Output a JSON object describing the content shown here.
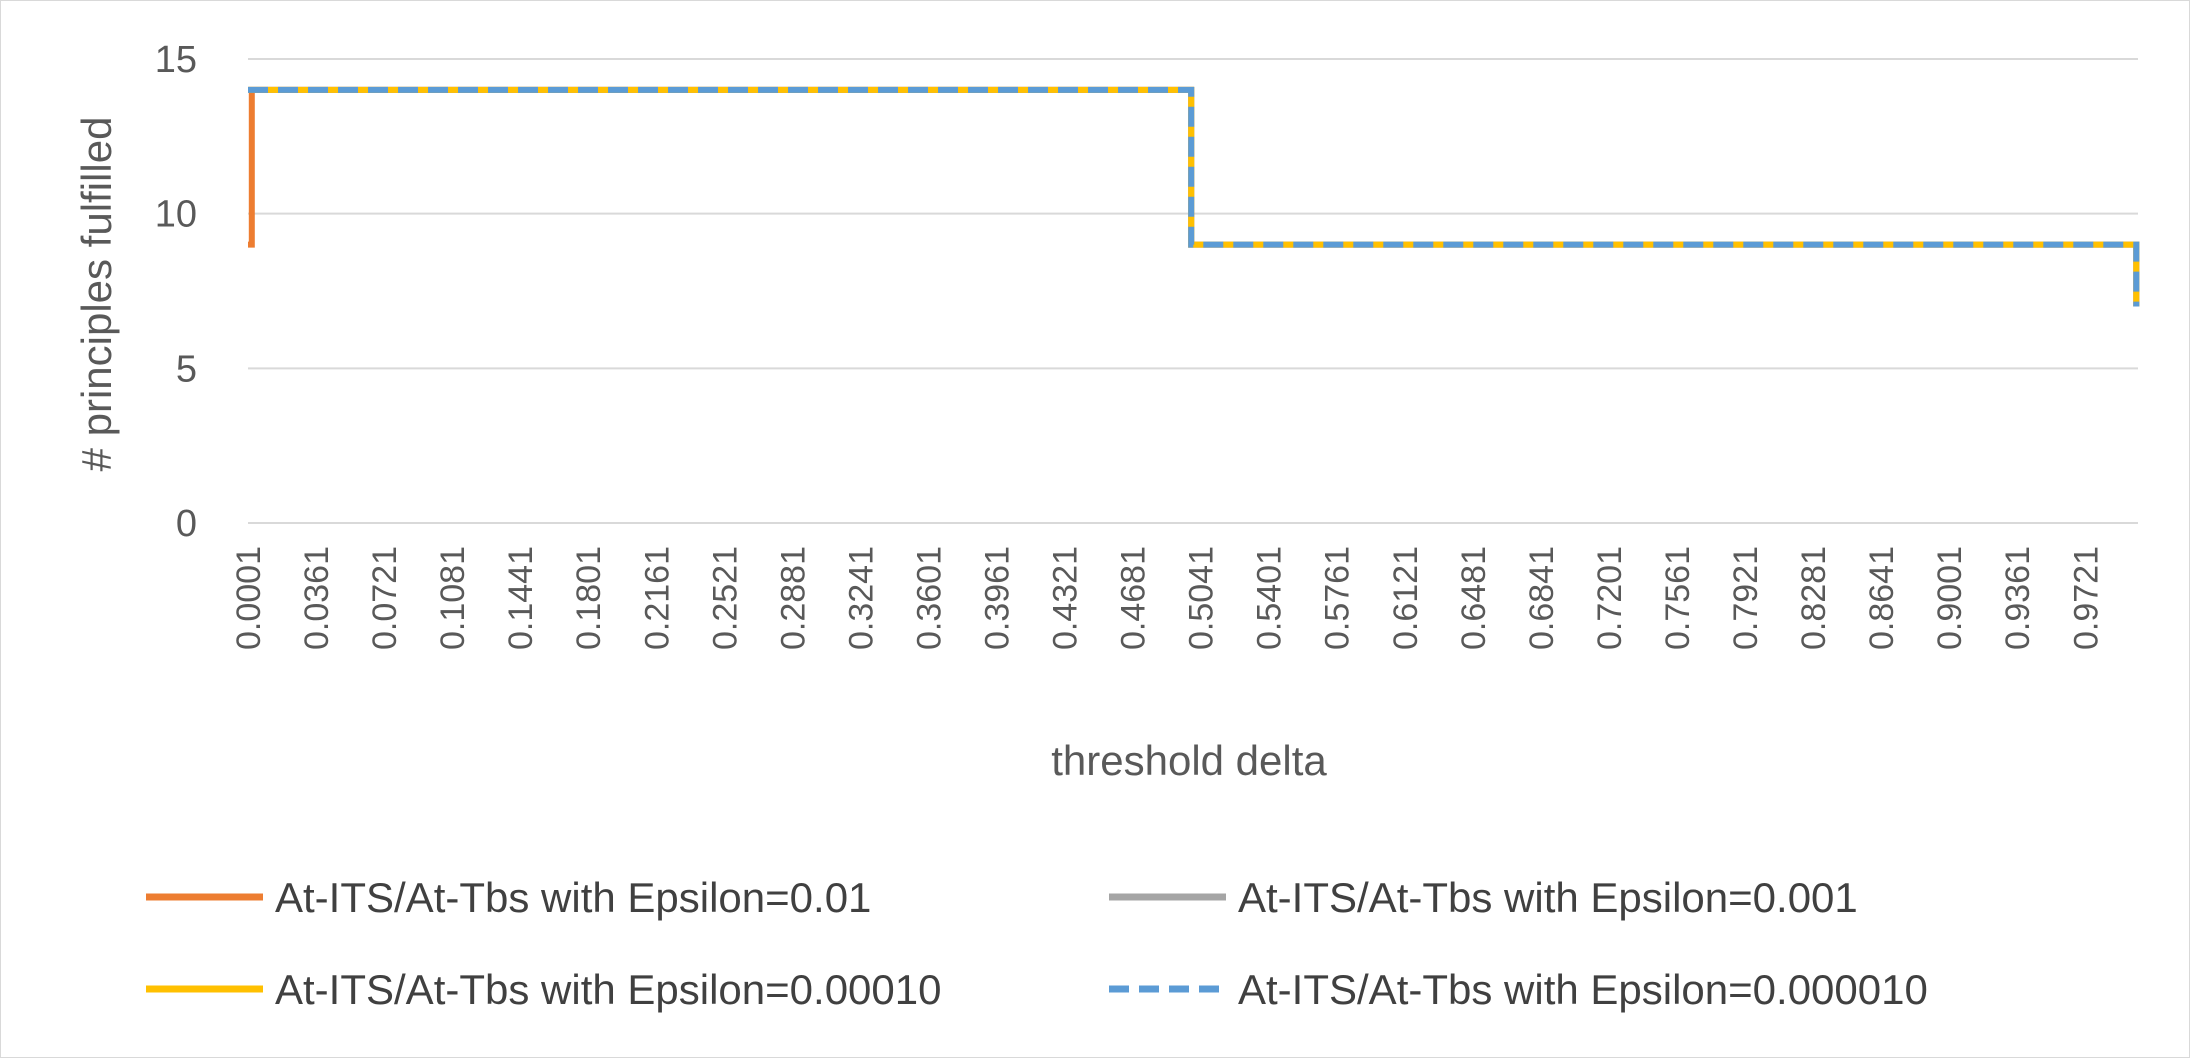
{
  "chart_data": {
    "type": "line",
    "title": "",
    "xlabel": "threshold delta",
    "ylabel": "# principles fulfilled",
    "ylim": [
      0,
      15
    ],
    "yticks": [
      0,
      5,
      10,
      15
    ],
    "xlim": [
      0.0001,
      1.0
    ],
    "xtick_labels": [
      "0.0001",
      "0.0361",
      "0.0721",
      "0.1081",
      "0.1441",
      "0.1801",
      "0.2161",
      "0.2521",
      "0.2881",
      "0.3241",
      "0.3601",
      "0.3961",
      "0.4321",
      "0.4681",
      "0.5041",
      "0.5401",
      "0.5761",
      "0.6121",
      "0.6481",
      "0.6841",
      "0.7201",
      "0.7561",
      "0.7921",
      "0.8281",
      "0.8641",
      "0.9001",
      "0.9361",
      "0.9721"
    ],
    "grid": true,
    "legend_position": "bottom",
    "series": [
      {
        "name": "At-ITS/At-Tbs with Epsilon=0.01",
        "color": "#ED7D31",
        "style": "solid",
        "points": [
          [
            0.0001,
            9
          ],
          [
            0.0021,
            9
          ],
          [
            0.0021,
            14
          ],
          [
            0.4991,
            14
          ],
          [
            0.4991,
            9
          ],
          [
            0.9991,
            9
          ],
          [
            0.9991,
            7
          ]
        ]
      },
      {
        "name": "At-ITS/At-Tbs with Epsilon=0.001",
        "color": "#A5A5A5",
        "style": "solid",
        "points": [
          [
            0.0001,
            14
          ],
          [
            0.4991,
            14
          ],
          [
            0.4991,
            9
          ],
          [
            0.9991,
            9
          ],
          [
            0.9991,
            7
          ]
        ]
      },
      {
        "name": "At-ITS/At-Tbs with Epsilon=0.00010",
        "color": "#FFC000",
        "style": "solid",
        "points": [
          [
            0.0001,
            14
          ],
          [
            0.4991,
            14
          ],
          [
            0.4991,
            9
          ],
          [
            0.9991,
            9
          ],
          [
            0.9991,
            7
          ]
        ]
      },
      {
        "name": "At-ITS/At-Tbs with Epsilon=0.000010",
        "color": "#5B9BD5",
        "style": "dashed",
        "points": [
          [
            0.0001,
            14
          ],
          [
            0.4991,
            14
          ],
          [
            0.4991,
            9
          ],
          [
            0.9991,
            9
          ],
          [
            0.9991,
            7
          ]
        ]
      }
    ]
  }
}
